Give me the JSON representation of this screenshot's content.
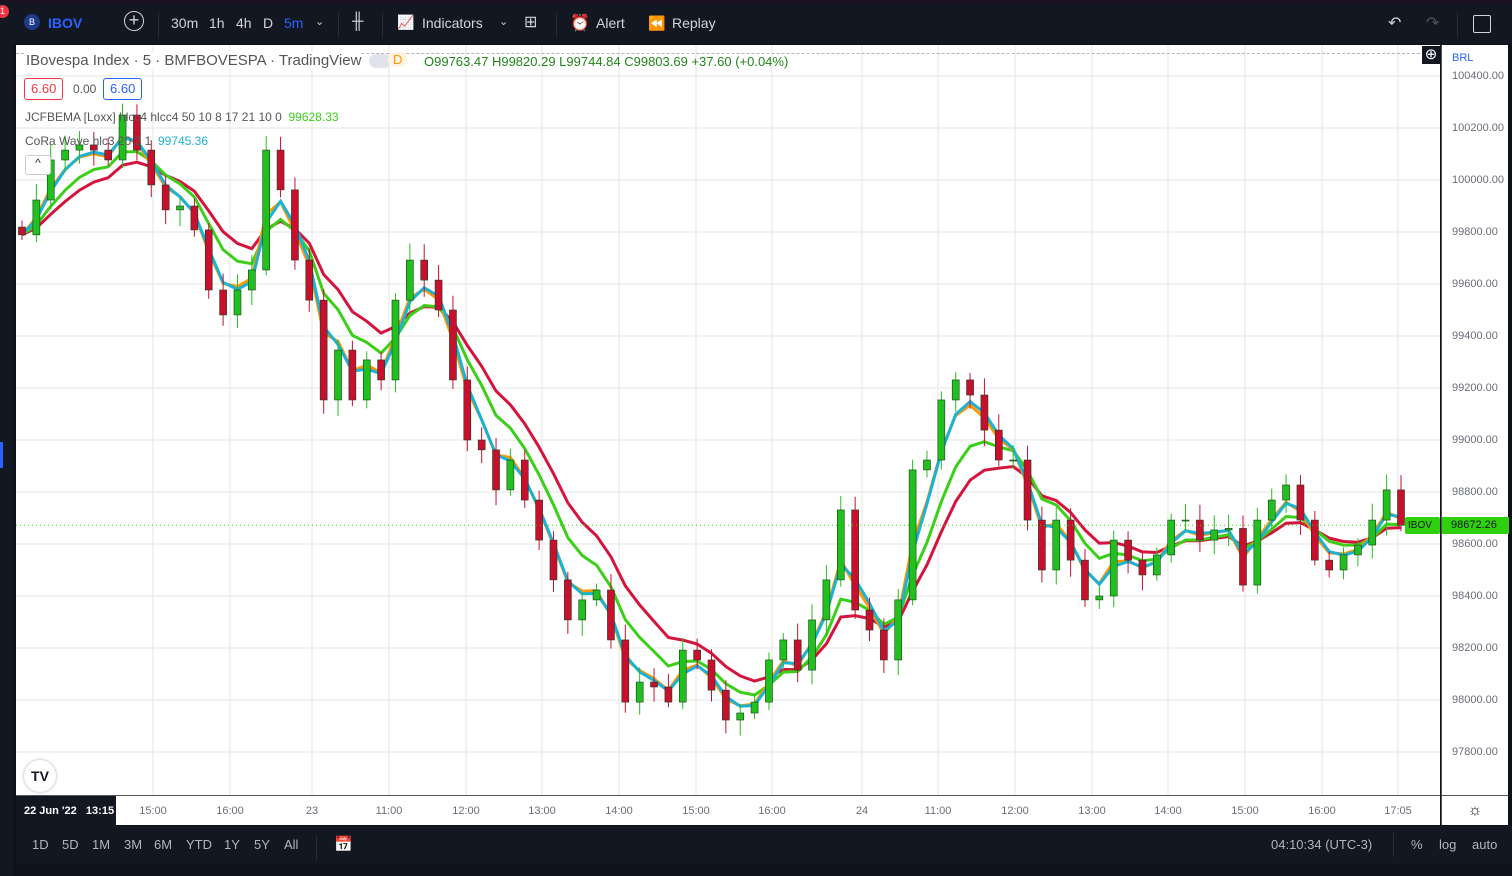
{
  "toolbar": {
    "notification_count": "1",
    "symbol": "IBOV",
    "intervals": [
      "30m",
      "1h",
      "4h",
      "D",
      "5m"
    ],
    "active_interval": "5m",
    "indicators_label": "Indicators",
    "alert_label": "Alert",
    "replay_label": "Replay"
  },
  "legend": {
    "title": "IBovespa Index · 5 · BMFBOVESPA · TradingView",
    "badge": "D",
    "ohlc": "O99763.47 H99820.29 L99744.84 C99803.69 +37.60 (+0.04%)",
    "sell": "6.60",
    "spread": "0.00",
    "buy": "6.60",
    "ind1_name": "JCFBEMA [Loxx] hlcc4 hlcc4 50 10 8 17 21 10 0",
    "ind1_value": "99628.33",
    "ind2_name": "CoRa Wave hlc3 20 2 1",
    "ind2_value": "99745.36"
  },
  "price_axis": {
    "currency": "BRL",
    "ticks": [
      "100400.00",
      "100200.00",
      "100000.00",
      "99800.00",
      "99600.00",
      "99400.00",
      "99200.00",
      "99000.00",
      "98800.00",
      "98600.00",
      "98400.00",
      "98200.00",
      "98000.00",
      "97800.00"
    ],
    "last_symbol": "IBOV",
    "last_price": "98672.26"
  },
  "time_axis": {
    "cursor_label": "22 Jun '22   13:15",
    "ticks": [
      "15:00",
      "16:00",
      "23",
      "11:00",
      "12:00",
      "13:00",
      "14:00",
      "15:00",
      "16:00",
      "24",
      "11:00",
      "12:00",
      "13:00",
      "14:00",
      "15:00",
      "16:00",
      "17:05"
    ]
  },
  "bottom": {
    "ranges": [
      "1D",
      "5D",
      "1M",
      "3M",
      "6M",
      "YTD",
      "1Y",
      "5Y",
      "All"
    ],
    "clock": "04:10:34 (UTC-3)",
    "percent": "%",
    "log": "log",
    "auto": "auto"
  },
  "colors": {
    "up": "#22c01e",
    "down": "#c8102e",
    "slow": "#d4143c",
    "fast": "#ff9800",
    "cora": "#1ab3d6",
    "jcfb": "#3ccf1a",
    "last": "#2fd10f"
  },
  "chart_data": {
    "type": "candlestick",
    "ylim": [
      97700,
      100450
    ],
    "closes": [
      99789,
      99923,
      100077,
      100115,
      100135,
      100115,
      100077,
      100250,
      100115,
      99981,
      99885,
      99900,
      99808,
      99577,
      99481,
      99577,
      99654,
      100115,
      99962,
      99692,
      99538,
      99154,
      99346,
      99154,
      99308,
      99231,
      99538,
      99692,
      99615,
      99500,
      99231,
      99000,
      98962,
      98808,
      98923,
      98769,
      98615,
      98462,
      98308,
      98385,
      98423,
      98231,
      97992,
      98069,
      98050,
      97992,
      98192,
      98154,
      98038,
      97923,
      97950,
      97992,
      98154,
      98231,
      98115,
      98308,
      98462,
      98731,
      98346,
      98269,
      98154,
      98385,
      98885,
      98923,
      99154,
      99231,
      99173,
      99038,
      98923,
      98923,
      98692,
      98500,
      98692,
      98538,
      98385,
      98400,
      98615,
      98538,
      98481,
      98558,
      98692,
      98692,
      98615,
      98654,
      98660,
      98442,
      98692,
      98769,
      98827,
      98692,
      98538,
      98500,
      98558,
      98596,
      98692,
      98808,
      98672
    ]
  }
}
